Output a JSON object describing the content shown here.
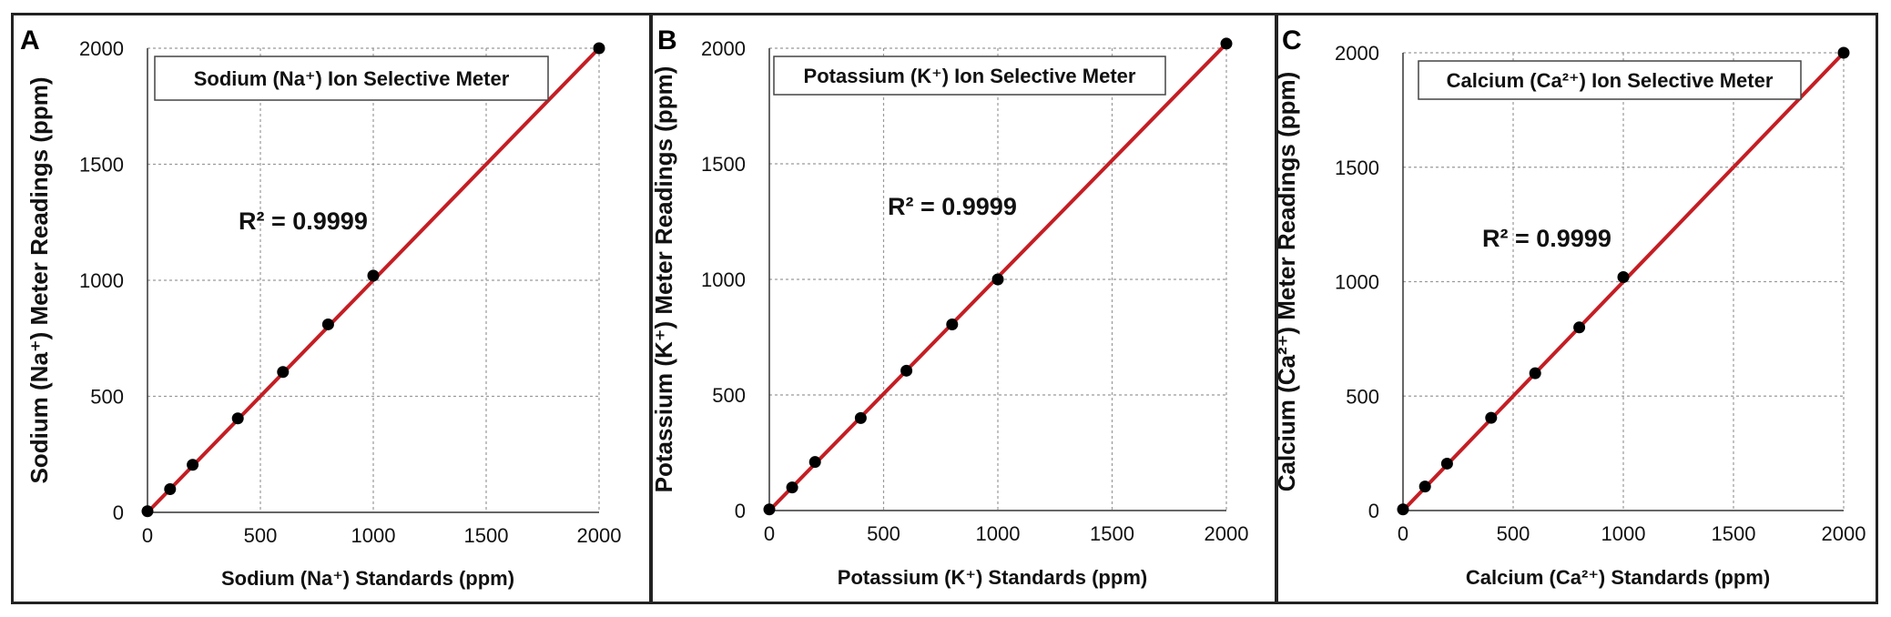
{
  "figure": {
    "accent": "#c41e24",
    "point_color": "#000000",
    "grid_color": "#9a9a9a"
  },
  "chart_data": [
    {
      "panel_label": "A",
      "type": "scatter",
      "title": "Sodium (Na⁺) Ion Selective Meter",
      "xlabel": "Sodium (Na⁺) Standards (ppm)",
      "ylabel": "Sodium (Na⁺) Meter Readings (ppm)",
      "r2_label": "R² = 0.9999",
      "xlim": [
        0,
        2000
      ],
      "ylim": [
        0,
        2000
      ],
      "xticks": [
        0,
        500,
        1000,
        1500,
        2000
      ],
      "yticks": [
        0,
        500,
        1000,
        1500,
        2000
      ],
      "grid": true,
      "series": [
        {
          "name": "Meter readings",
          "x": [
            0,
            100,
            200,
            400,
            600,
            800,
            1000,
            2000
          ],
          "y": [
            5,
            100,
            205,
            405,
            605,
            810,
            1020,
            2000
          ]
        }
      ],
      "fit_line": {
        "x": [
          0,
          2000
        ],
        "y": [
          0,
          2000
        ]
      }
    },
    {
      "panel_label": "B",
      "type": "scatter",
      "title": "Potassium (K⁺) Ion Selective Meter",
      "xlabel": "Potassium (K⁺) Standards (ppm)",
      "ylabel": "Potassium (K⁺) Meter Readings (ppm)",
      "r2_label": "R² = 0.9999",
      "xlim": [
        0,
        2000
      ],
      "ylim": [
        0,
        2000
      ],
      "xticks": [
        0,
        500,
        1000,
        1500,
        2000
      ],
      "yticks": [
        0,
        500,
        1000,
        1500,
        2000
      ],
      "grid": true,
      "series": [
        {
          "name": "Meter readings",
          "x": [
            0,
            100,
            200,
            400,
            600,
            800,
            1000,
            2000
          ],
          "y": [
            5,
            100,
            210,
            400,
            605,
            805,
            1000,
            2020
          ]
        }
      ],
      "fit_line": {
        "x": [
          0,
          2000
        ],
        "y": [
          0,
          2020
        ]
      }
    },
    {
      "panel_label": "C",
      "type": "scatter",
      "title": "Calcium (Ca²⁺) Ion Selective Meter",
      "xlabel": "Calcium (Ca²⁺) Standards (ppm)",
      "ylabel": "Calcium (Ca²⁺) Meter Readings (ppm)",
      "r2_label": "R² = 0.9999",
      "xlim": [
        0,
        2000
      ],
      "ylim": [
        0,
        2000
      ],
      "xticks": [
        0,
        500,
        1000,
        1500,
        2000
      ],
      "yticks": [
        0,
        500,
        1000,
        1500,
        2000
      ],
      "grid": true,
      "series": [
        {
          "name": "Meter readings",
          "x": [
            0,
            100,
            200,
            400,
            600,
            800,
            1000,
            2000
          ],
          "y": [
            5,
            105,
            205,
            405,
            600,
            800,
            1020,
            2000
          ]
        }
      ],
      "fit_line": {
        "x": [
          0,
          2000
        ],
        "y": [
          0,
          2000
        ]
      }
    }
  ]
}
